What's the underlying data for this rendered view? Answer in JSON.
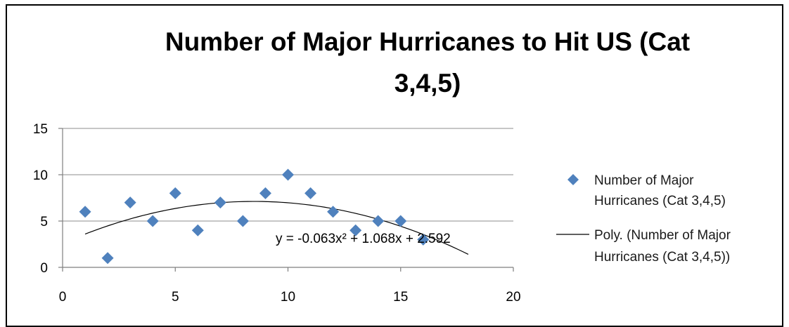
{
  "chart_data": {
    "type": "scatter",
    "title_lines": [
      "Number of Major Hurricanes to Hit US (Cat",
      "3,4,5)"
    ],
    "xlabel": "",
    "ylabel": "",
    "xlim": [
      0,
      20
    ],
    "ylim": [
      0,
      15
    ],
    "x_ticks": [
      0,
      5,
      10,
      15,
      20
    ],
    "y_ticks": [
      0,
      5,
      10,
      15
    ],
    "x_tick_labels": [
      "0",
      "5",
      "10",
      "15",
      "20"
    ],
    "y_tick_labels": [
      "0",
      "5",
      "10",
      "15"
    ],
    "grid": "horizontal",
    "legend_position": "right",
    "series": [
      {
        "name_lines": [
          "Number of Major",
          "Hurricanes (Cat 3,4,5)"
        ],
        "marker": "diamond",
        "color": "#4F81BD",
        "x": [
          1,
          2,
          3,
          4,
          5,
          6,
          7,
          8,
          9,
          10,
          11,
          12,
          13,
          14,
          15,
          16
        ],
        "y": [
          6,
          1,
          7,
          5,
          8,
          4,
          7,
          5,
          8,
          10,
          8,
          6,
          4,
          5,
          5,
          3
        ]
      }
    ],
    "trendline": {
      "name_lines": [
        "Poly. (Number of Major",
        "Hurricanes (Cat 3,4,5))"
      ],
      "type": "polynomial",
      "order": 2,
      "coefficients": [
        -0.063,
        1.068,
        2.592
      ],
      "x_range": [
        1,
        18
      ],
      "color": "#000000",
      "equation": "y = -0.063x² + 1.068x + 2.592"
    }
  }
}
